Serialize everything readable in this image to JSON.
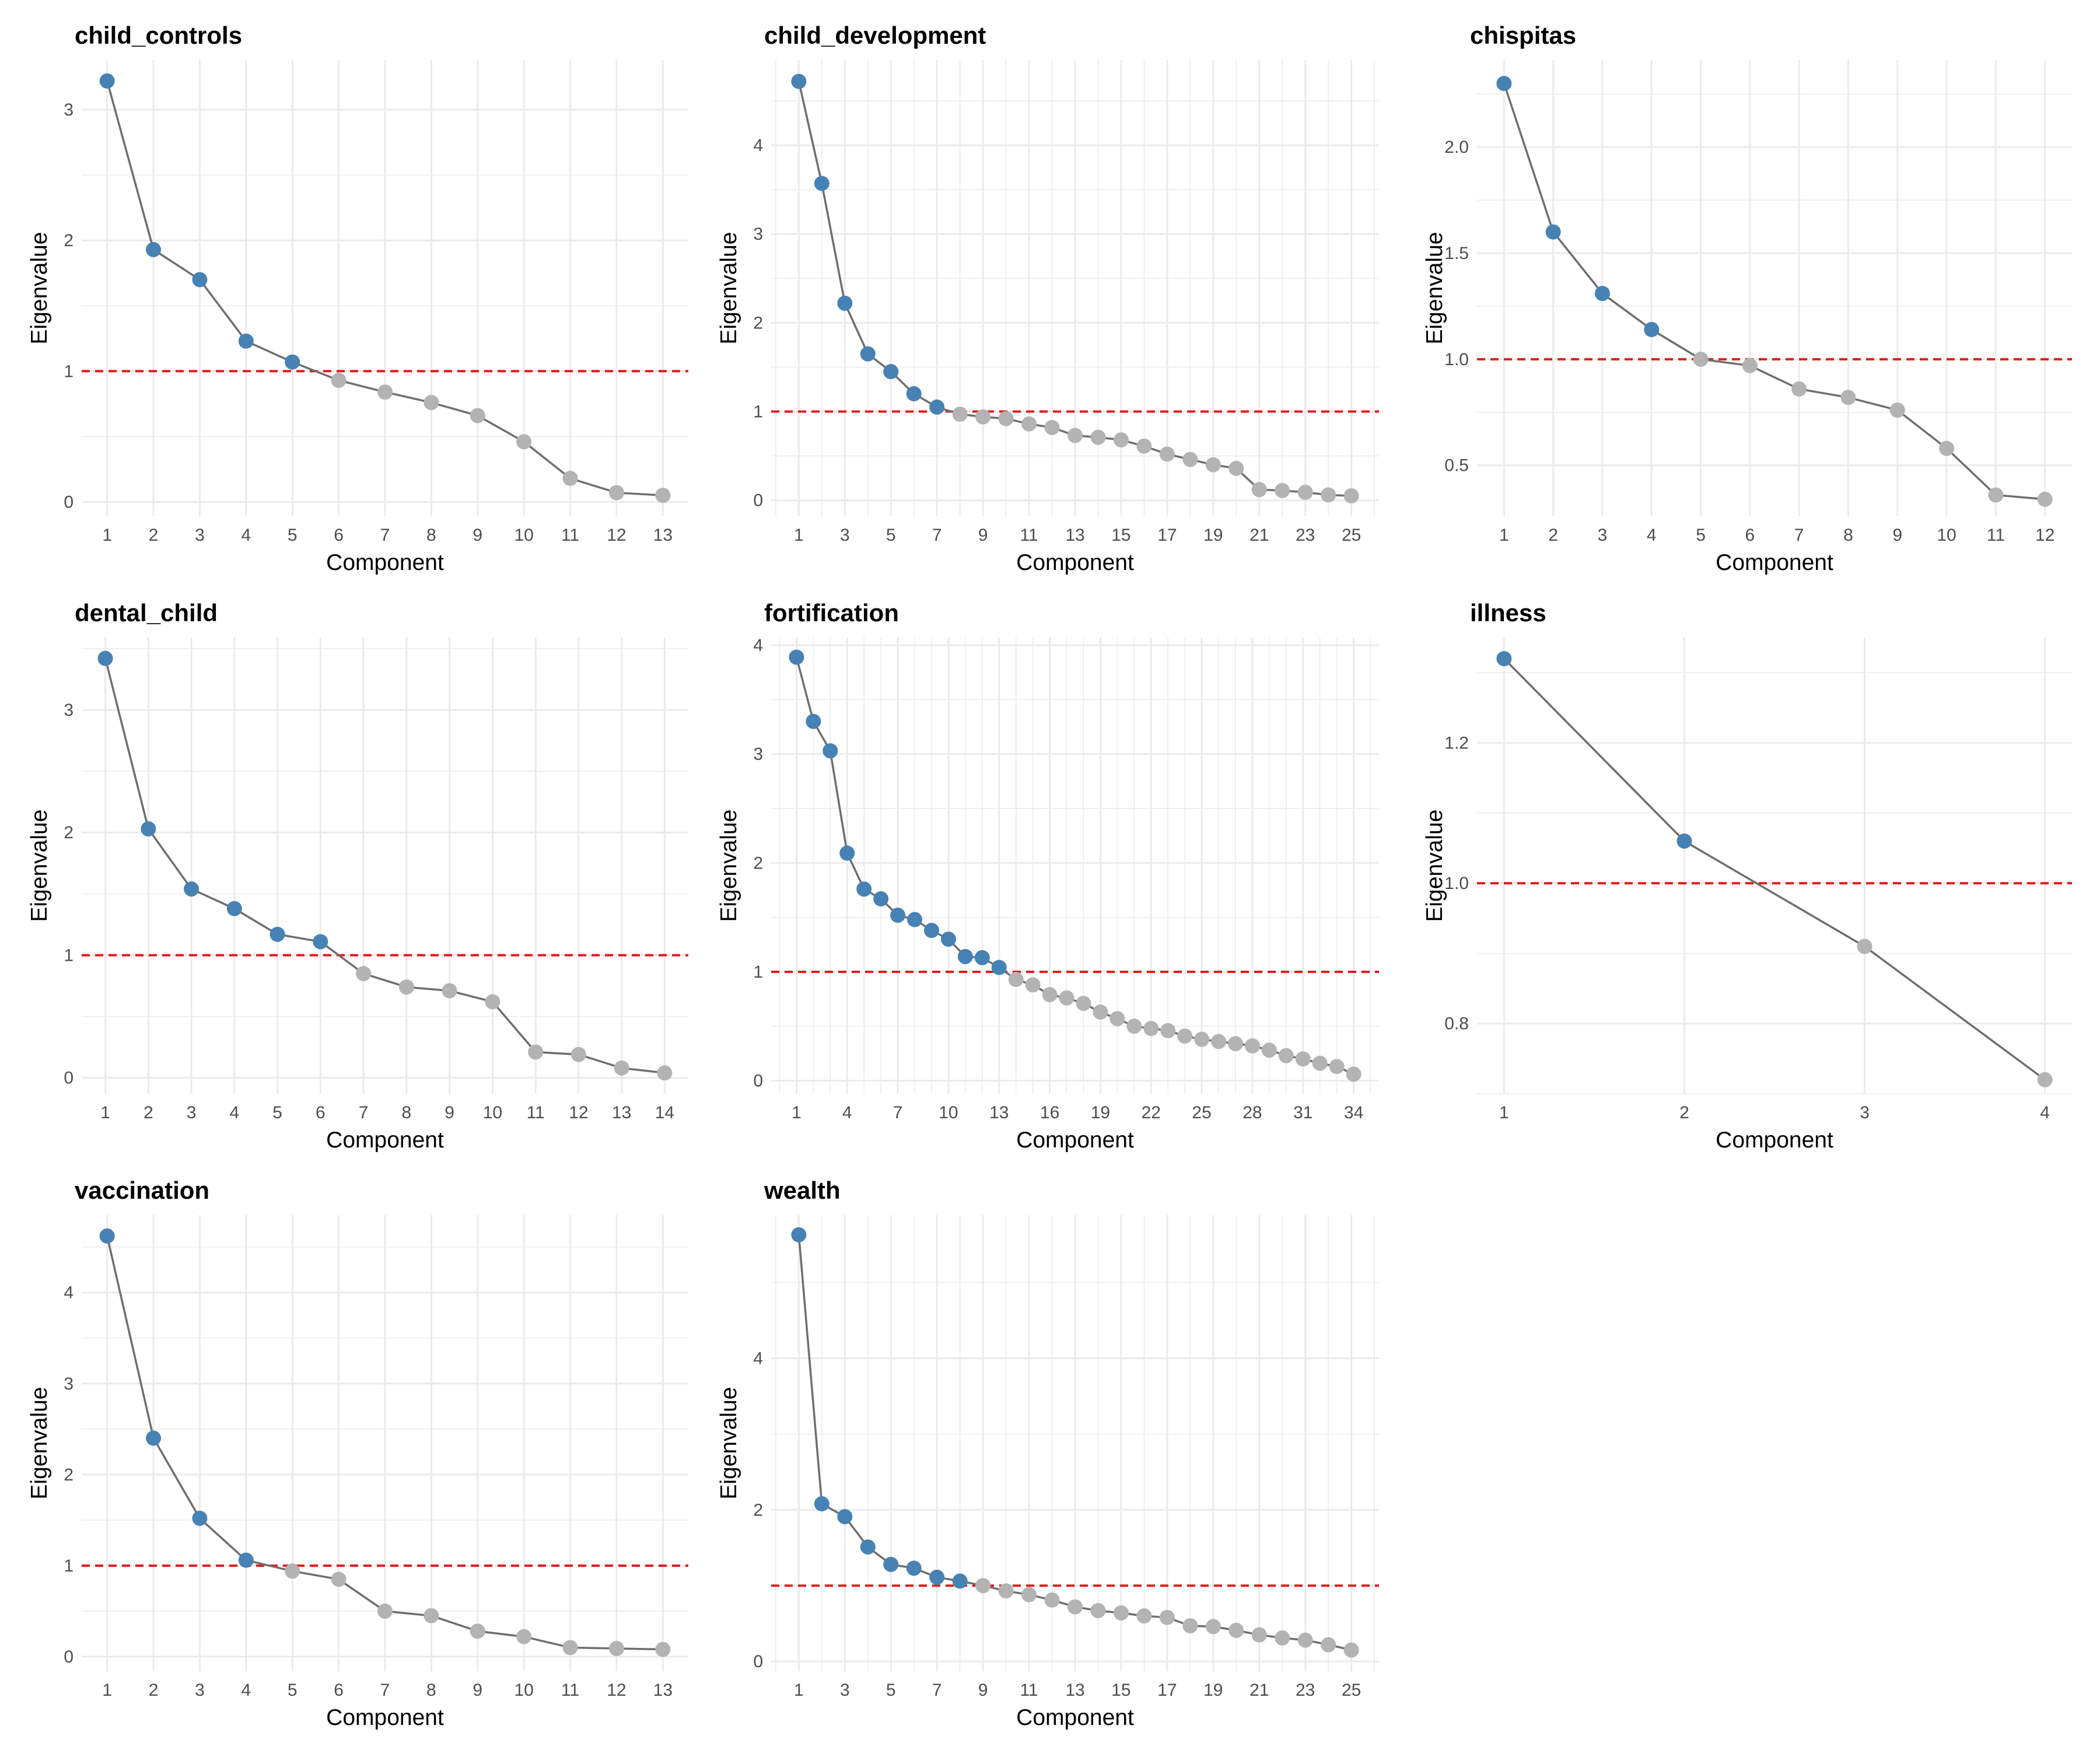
{
  "figure": {
    "marker_colors": {
      "retained": "#4682b4",
      "dropped": "#b3b3b3"
    },
    "line_color": "#6e6e6e",
    "threshold_color": "#e41a1c",
    "grid_color": "#ebebeb"
  },
  "chart_data": [
    {
      "type": "line",
      "title": "child_controls",
      "xlabel": "Component",
      "ylabel": "Eigenvalue",
      "x": [
        1,
        2,
        3,
        4,
        5,
        6,
        7,
        8,
        9,
        10,
        11,
        12,
        13
      ],
      "values": [
        3.22,
        1.93,
        1.7,
        1.23,
        1.07,
        0.93,
        0.84,
        0.76,
        0.66,
        0.46,
        0.18,
        0.07,
        0.05
      ],
      "threshold": 1,
      "xlim": [
        0.45,
        13.55
      ],
      "ylim": [
        -0.11,
        3.38
      ],
      "xticks": [
        1,
        2,
        3,
        4,
        5,
        6,
        7,
        8,
        9,
        10,
        11,
        12,
        13
      ],
      "yticks": [
        0,
        1,
        2,
        3
      ],
      "y_decimals": 0
    },
    {
      "type": "line",
      "title": "child_development",
      "xlabel": "Component",
      "ylabel": "Eigenvalue",
      "x": [
        1,
        2,
        3,
        4,
        5,
        6,
        7,
        8,
        9,
        10,
        11,
        12,
        13,
        14,
        15,
        16,
        17,
        18,
        19,
        20,
        21,
        22,
        23,
        24,
        25
      ],
      "values": [
        4.72,
        3.57,
        2.22,
        1.65,
        1.45,
        1.2,
        1.05,
        0.97,
        0.94,
        0.92,
        0.86,
        0.82,
        0.73,
        0.71,
        0.68,
        0.61,
        0.52,
        0.46,
        0.4,
        0.36,
        0.12,
        0.11,
        0.09,
        0.06,
        0.05
      ],
      "threshold": 1,
      "xlim": [
        -0.2,
        26.2
      ],
      "ylim": [
        -0.18,
        4.96
      ],
      "xticks": [
        1,
        3,
        5,
        7,
        9,
        11,
        13,
        15,
        17,
        19,
        21,
        23,
        25
      ],
      "yticks": [
        0,
        1,
        2,
        3,
        4
      ],
      "y_decimals": 0
    },
    {
      "type": "line",
      "title": "chispitas",
      "xlabel": "Component",
      "ylabel": "Eigenvalue",
      "x": [
        1,
        2,
        3,
        4,
        5,
        6,
        7,
        8,
        9,
        10,
        11,
        12
      ],
      "values": [
        2.3,
        1.6,
        1.31,
        1.14,
        1.0,
        0.97,
        0.86,
        0.82,
        0.76,
        0.58,
        0.36,
        0.34
      ],
      "threshold": 1,
      "xlim": [
        0.45,
        12.55
      ],
      "ylim": [
        0.26,
        2.41
      ],
      "xticks": [
        1,
        2,
        3,
        4,
        5,
        6,
        7,
        8,
        9,
        10,
        11,
        12
      ],
      "yticks": [
        0.5,
        1.0,
        1.5,
        2.0
      ],
      "y_decimals": 1
    },
    {
      "type": "line",
      "title": "dental_child",
      "xlabel": "Component",
      "ylabel": "Eigenvalue",
      "x": [
        1,
        2,
        3,
        4,
        5,
        6,
        7,
        8,
        9,
        10,
        11,
        12,
        13,
        14
      ],
      "values": [
        3.42,
        2.03,
        1.54,
        1.38,
        1.17,
        1.11,
        0.85,
        0.74,
        0.71,
        0.62,
        0.21,
        0.19,
        0.08,
        0.04
      ],
      "threshold": 1,
      "xlim": [
        0.45,
        14.55
      ],
      "ylim": [
        -0.13,
        3.59
      ],
      "xticks": [
        1,
        2,
        3,
        4,
        5,
        6,
        7,
        8,
        9,
        10,
        11,
        12,
        13,
        14
      ],
      "yticks": [
        0,
        1,
        2,
        3
      ],
      "y_decimals": 0
    },
    {
      "type": "line",
      "title": "fortification",
      "xlabel": "Component",
      "ylabel": "Eigenvalue",
      "x": [
        1,
        2,
        3,
        4,
        5,
        6,
        7,
        8,
        9,
        10,
        11,
        12,
        13,
        14,
        15,
        16,
        17,
        18,
        19,
        20,
        21,
        22,
        23,
        24,
        25,
        26,
        27,
        28,
        29,
        30,
        31,
        32,
        33,
        34
      ],
      "values": [
        3.89,
        3.3,
        3.03,
        2.09,
        1.76,
        1.67,
        1.52,
        1.48,
        1.38,
        1.3,
        1.14,
        1.13,
        1.04,
        0.93,
        0.88,
        0.79,
        0.76,
        0.71,
        0.63,
        0.57,
        0.5,
        0.48,
        0.46,
        0.41,
        0.38,
        0.36,
        0.34,
        0.32,
        0.28,
        0.23,
        0.2,
        0.16,
        0.13,
        0.06
      ],
      "threshold": 1,
      "xlim": [
        -0.5,
        35.5
      ],
      "ylim": [
        -0.12,
        4.07
      ],
      "xticks": [
        1,
        4,
        7,
        10,
        13,
        16,
        19,
        22,
        25,
        28,
        31,
        34
      ],
      "yticks": [
        0,
        1,
        2,
        3,
        4
      ],
      "y_decimals": 0
    },
    {
      "type": "line",
      "title": "illness",
      "xlabel": "Component",
      "ylabel": "Eigenvalue",
      "x": [
        1,
        2,
        3,
        4
      ],
      "values": [
        1.32,
        1.06,
        0.91,
        0.72
      ],
      "threshold": 1,
      "xlim": [
        0.85,
        4.15
      ],
      "ylim": [
        0.7,
        1.35
      ],
      "xticks": [
        1,
        2,
        3,
        4
      ],
      "yticks": [
        0.8,
        1.0,
        1.2
      ],
      "y_decimals": 1
    },
    {
      "type": "line",
      "title": "vaccination",
      "xlabel": "Component",
      "ylabel": "Eigenvalue",
      "x": [
        1,
        2,
        3,
        4,
        5,
        6,
        7,
        8,
        9,
        10,
        11,
        12,
        13
      ],
      "values": [
        4.62,
        2.4,
        1.52,
        1.06,
        0.94,
        0.85,
        0.5,
        0.45,
        0.28,
        0.22,
        0.1,
        0.09,
        0.08
      ],
      "threshold": 1,
      "xlim": [
        0.45,
        13.55
      ],
      "ylim": [
        -0.16,
        4.85
      ],
      "xticks": [
        1,
        2,
        3,
        4,
        5,
        6,
        7,
        8,
        9,
        10,
        11,
        12,
        13
      ],
      "yticks": [
        0,
        1,
        2,
        3,
        4
      ],
      "y_decimals": 0
    },
    {
      "type": "line",
      "title": "wealth",
      "xlabel": "Component",
      "ylabel": "Eigenvalue",
      "x": [
        1,
        2,
        3,
        4,
        5,
        6,
        7,
        8,
        9,
        10,
        11,
        12,
        13,
        14,
        15,
        16,
        17,
        18,
        19,
        20,
        21,
        22,
        23,
        24,
        25
      ],
      "values": [
        5.63,
        2.08,
        1.91,
        1.51,
        1.28,
        1.23,
        1.11,
        1.06,
        1.0,
        0.93,
        0.88,
        0.81,
        0.72,
        0.67,
        0.64,
        0.6,
        0.58,
        0.47,
        0.46,
        0.41,
        0.35,
        0.31,
        0.28,
        0.22,
        0.15
      ],
      "threshold": 1,
      "xlim": [
        -0.2,
        26.2
      ],
      "ylim": [
        -0.13,
        5.89
      ],
      "xticks": [
        1,
        3,
        5,
        7,
        9,
        11,
        13,
        15,
        17,
        19,
        21,
        23,
        25
      ],
      "yticks": [
        0,
        2,
        4
      ],
      "y_decimals": 0
    }
  ]
}
